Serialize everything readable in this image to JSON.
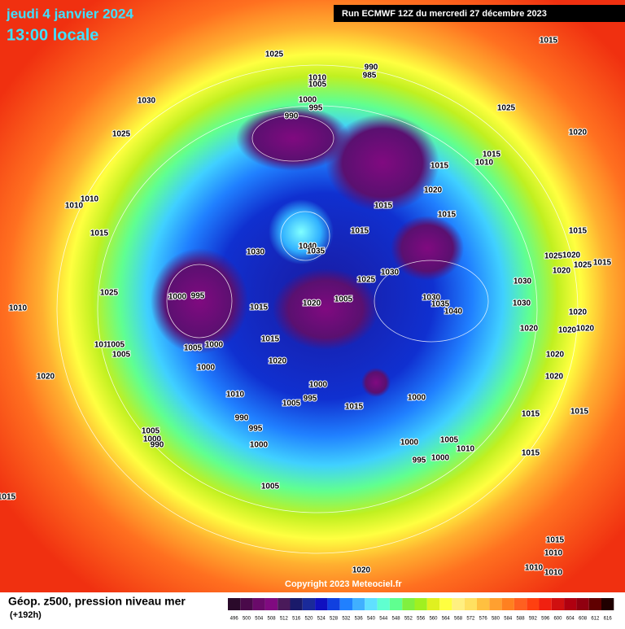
{
  "header": {
    "date": "jeudi 4 janvier 2024",
    "time": "13:00 locale",
    "run": "Run ECMWF 12Z du mercredi 27 décembre 2023"
  },
  "footer": {
    "title": "Géop. z500, pression niveau mer",
    "lead": "(+192h)",
    "copyright": "Copyright 2023 Meteociel.fr"
  },
  "pressure_labels": [
    "1015",
    "1025",
    "990",
    "985",
    "1010",
    "1005",
    "1030",
    "1000",
    "995",
    "990",
    "1025",
    "1025",
    "1020",
    "1015",
    "1010",
    "1015",
    "1020",
    "1010",
    "1010",
    "1015",
    "1015",
    "1015",
    "1015",
    "1015",
    "1040",
    "1035",
    "1030",
    "1025",
    "1020",
    "1025",
    "1015",
    "1020",
    "1030",
    "1025",
    "1030",
    "1025",
    "1000",
    "995",
    "1020",
    "1005",
    "1030",
    "1035",
    "1040",
    "1030",
    "1010",
    "1015",
    "1020",
    "1020",
    "1020",
    "1020",
    "1015",
    "1010",
    "1005",
    "1005",
    "1005",
    "1000",
    "1020",
    "1020",
    "1000",
    "1020",
    "1020",
    "1000",
    "1010",
    "995",
    "1005",
    "1015",
    "1000",
    "1015",
    "1015",
    "990",
    "995",
    "1005",
    "1000",
    "990",
    "1005",
    "1000",
    "1000",
    "1010",
    "1015",
    "1000",
    "995",
    "1005",
    "1015",
    "1015",
    "1010",
    "1010",
    "1010",
    "1020"
  ],
  "legend": {
    "values": [
      496,
      500,
      504,
      508,
      512,
      516,
      520,
      524,
      528,
      532,
      536,
      540,
      544,
      548,
      552,
      556,
      560,
      564,
      568,
      572,
      576,
      580,
      584,
      588,
      592,
      596,
      600,
      604,
      608,
      612,
      616
    ],
    "colors": [
      "#2a0a2a",
      "#4a0a4a",
      "#6a0a6a",
      "#800a80",
      "#4a1a5a",
      "#1a1a6a",
      "#1a2a9a",
      "#1010c0",
      "#1040e0",
      "#2080ff",
      "#40b0ff",
      "#60e0ff",
      "#60ffd0",
      "#60ff90",
      "#80f040",
      "#a0f020",
      "#e0f020",
      "#ffff40",
      "#fff080",
      "#ffe060",
      "#ffc040",
      "#ffa030",
      "#ff8020",
      "#ff6020",
      "#ff4010",
      "#f02010",
      "#d01010",
      "#b00010",
      "#900010",
      "#600000",
      "#200000"
    ]
  }
}
